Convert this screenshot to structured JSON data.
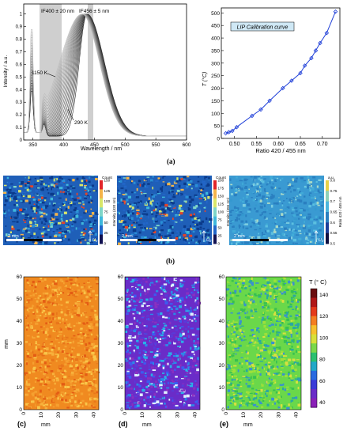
{
  "panel_a": {
    "spectra": {
      "ylabel": "Intensity / a.u.",
      "xlabel": "Wavelength / nm",
      "xticks": [
        350,
        400,
        450,
        500,
        550,
        600
      ],
      "xtick_labels": [
        "350",
        "400",
        "450",
        "500",
        "550",
        "600"
      ],
      "yticks": [
        0,
        0.1,
        0.2,
        0.3,
        0.4,
        0.5,
        0.6,
        0.7,
        0.8,
        0.9,
        1
      ],
      "ytick_labels": [
        "0",
        "0.1",
        "0.2",
        "0.3",
        "0.4",
        "0.5",
        "0.6",
        "0.7",
        "0.8",
        "0.9",
        "1"
      ],
      "filter1_label": "IF400 ± 20 nm",
      "filter2_label": "IF456 ± 5 nm",
      "hot_label": "1150 K",
      "cold_label": "290 K"
    },
    "caption": "(a)"
  },
  "chart_data": [
    {
      "type": "line",
      "title": "LIP Calibration curve",
      "xlabel": "Ratio 420 / 455 nm",
      "ylabel": "T (°C)",
      "xlim": [
        0.47,
        0.74
      ],
      "ylim": [
        0,
        520
      ],
      "xticks": [
        0.5,
        0.55,
        0.6,
        0.65,
        0.7
      ],
      "xtick_labels": [
        "0.50",
        "0.55",
        "0.60",
        "0.65",
        "0.70"
      ],
      "yticks": [
        0,
        50,
        100,
        150,
        200,
        250,
        300,
        350,
        400,
        450,
        500
      ],
      "ytick_labels": [
        "0",
        "50",
        "100",
        "150",
        "200",
        "250",
        "300",
        "350",
        "400",
        "450",
        "500"
      ],
      "x": [
        0.48,
        0.487,
        0.495,
        0.505,
        0.54,
        0.56,
        0.58,
        0.61,
        0.63,
        0.65,
        0.66,
        0.675,
        0.685,
        0.695,
        0.71,
        0.73
      ],
      "y": [
        20,
        25,
        30,
        45,
        90,
        115,
        150,
        200,
        230,
        260,
        290,
        320,
        350,
        380,
        420,
        505
      ]
    }
  ],
  "panel_b": {
    "maps": [
      {
        "cbar_title": "Count",
        "cbar_label": "Intensity (420 nm)",
        "ticks": [
          "150",
          "125",
          "100",
          "75",
          "50",
          "25",
          "0"
        ],
        "scale_label": "2 mm",
        "arrow_label": "U₀"
      },
      {
        "cbar_title": "Count",
        "cbar_label": "Intensity (455 nm)",
        "ticks": [
          "200",
          "175",
          "150",
          "125",
          "100",
          "75",
          "50",
          "25",
          "0"
        ],
        "scale_label": "2 mm",
        "arrow_label": "U₀"
      },
      {
        "cbar_title": "a.u.",
        "cbar_label": "Ratio 420 / 455 nm",
        "ticks": [
          "0.8",
          "0.75",
          "0.7",
          "0.65",
          "0.6",
          "0.55",
          "0.5"
        ],
        "scale_label": "2 mm",
        "arrow_label": "U₀"
      }
    ],
    "caption": "(b)"
  },
  "panel_cde": {
    "ylabel": "mm",
    "xlabel": "mm",
    "yticks": [
      "60",
      "50",
      "40",
      "30",
      "20",
      "10",
      "0"
    ],
    "xticks": [
      "0",
      "10",
      "20",
      "30",
      "40"
    ],
    "cbar_title": "T (° C)",
    "cbar_ticks": [
      "140",
      "120",
      "100",
      "80",
      "60",
      "40"
    ],
    "captions": [
      "(c)",
      "(d)",
      "(e)"
    ]
  },
  "colors": {
    "blue_curve": "#1f3fd8",
    "filter_band": "#cccccc"
  }
}
